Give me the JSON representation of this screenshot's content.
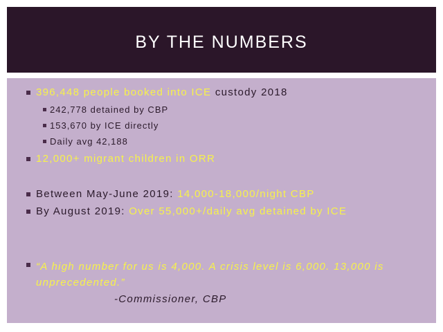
{
  "header": {
    "title": "BY THE NUMBERS"
  },
  "bullets": [
    {
      "highlight": "396,448 people booked into ICE",
      "text": "custody 2018"
    },
    {
      "text": "242,778 detained by CBP"
    },
    {
      "text": "153,670 by ICE directly"
    },
    {
      "text": "Daily avg 42,188"
    },
    {
      "highlight": "12,000+ migrant children in ORR"
    },
    {
      "text": "Between May-June 2019:",
      "highlight": "14,000-18,000/night CBP"
    },
    {
      "text": "By August 2019:",
      "highlight": "Over 55,000+/daily avg detained by ICE"
    }
  ],
  "quote": {
    "text": "“A high number for us is 4,000. A crisis level is 6,000. 13,000 is unprecedented.”",
    "attribution": "-Commissioner, CBP"
  }
}
